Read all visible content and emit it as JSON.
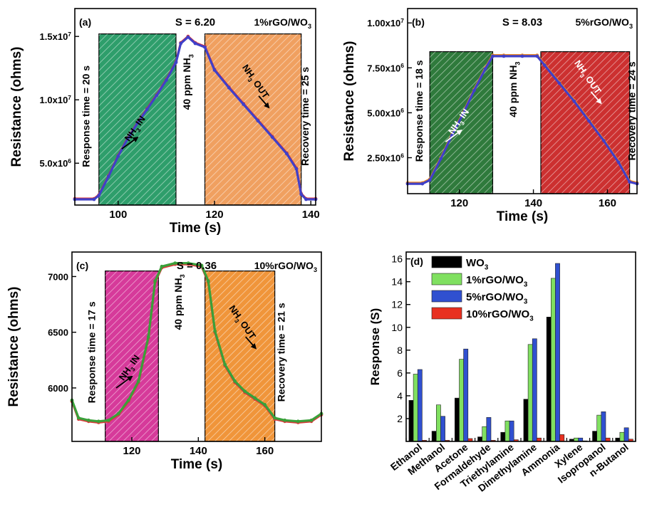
{
  "chart_data": [
    {
      "panel": "(a)",
      "type": "line",
      "sensitivity_label": "S = 6.20",
      "material_label": "1%rGO/WO",
      "material_sub": "3",
      "xlabel": "Time (s)",
      "ylabel": "Resistance (ohms)",
      "xlim": [
        91,
        141
      ],
      "ylim": [
        1700000,
        17200000
      ],
      "xticks": [
        100,
        120,
        140
      ],
      "xtick_labels": [
        "100",
        "120",
        "140"
      ],
      "yticks": [
        5000000,
        10000000,
        15000000
      ],
      "ytick_labels": [
        {
          "mant": "5.0x10",
          "exp": "6"
        },
        {
          "mant": "1.0x10",
          "exp": "7"
        },
        {
          "mant": "1.5x10",
          "exp": "7"
        }
      ],
      "regions": [
        {
          "x0": 96,
          "x1": 112,
          "top": 15200000,
          "fill": "#2e9e6b",
          "label": "NH",
          "label_sub": "3",
          "label_post": " IN"
        },
        {
          "x0": 118,
          "x1": 138,
          "top": 15200000,
          "fill": "#f0a060",
          "label": "NH",
          "label_sub": "3",
          "label_post": " OUT"
        }
      ],
      "vertical_labels": [
        {
          "text": "Response time = 20 s",
          "x": 94,
          "y": 8700000
        },
        {
          "text": "40 ppm NH",
          "sub": "3",
          "x": 115,
          "y": 11400000
        },
        {
          "text": "Recovery time = 25 s",
          "x": 139.5,
          "y": 8700000
        }
      ],
      "series": [
        {
          "color": "#e03030",
          "points": [
            [
              91,
              2200000
            ],
            [
              95,
              2200000
            ],
            [
              96,
              2500000
            ],
            [
              98,
              4000000
            ],
            [
              100,
              5600000
            ],
            [
              102,
              7000000
            ],
            [
              104,
              8200000
            ],
            [
              106,
              9300000
            ],
            [
              108,
              10400000
            ],
            [
              110,
              11600000
            ],
            [
              112,
              13000000
            ],
            [
              113,
              14500000
            ],
            [
              114.5,
              15000000
            ],
            [
              116,
              14500000
            ],
            [
              118,
              14200000
            ],
            [
              120,
              12400000
            ],
            [
              123,
              11000000
            ],
            [
              126,
              9700000
            ],
            [
              129,
              8400000
            ],
            [
              132,
              7100000
            ],
            [
              135,
              5800000
            ],
            [
              137,
              4600000
            ],
            [
              138,
              2600000
            ],
            [
              139,
              2200000
            ],
            [
              141,
              2200000
            ]
          ]
        },
        {
          "color": "#4040c8",
          "points": [
            [
              91,
              2150000
            ],
            [
              95,
              2150000
            ],
            [
              96,
              2450000
            ],
            [
              98,
              3950000
            ],
            [
              100,
              5550000
            ],
            [
              102,
              6950000
            ],
            [
              104,
              8150000
            ],
            [
              106,
              9250000
            ],
            [
              108,
              10350000
            ],
            [
              110,
              11550000
            ],
            [
              112,
              12950000
            ],
            [
              113,
              14450000
            ],
            [
              114.5,
              14950000
            ],
            [
              116,
              14450000
            ],
            [
              118,
              14150000
            ],
            [
              120,
              12350000
            ],
            [
              123,
              10950000
            ],
            [
              126,
              9650000
            ],
            [
              129,
              8350000
            ],
            [
              132,
              7050000
            ],
            [
              135,
              5750000
            ],
            [
              137,
              4550000
            ],
            [
              138,
              2550000
            ],
            [
              139,
              2150000
            ],
            [
              141,
              2150000
            ]
          ]
        }
      ]
    },
    {
      "panel": "(b)",
      "type": "line",
      "sensitivity_label": "S = 8.03",
      "material_label": "5%rGO/WO",
      "material_sub": "3",
      "xlabel": "Time (s)",
      "ylabel": "Resistance (ohms)",
      "xlim": [
        106,
        168
      ],
      "ylim": [
        500000,
        10800000
      ],
      "xticks": [
        120,
        140,
        160
      ],
      "xtick_labels": [
        "120",
        "140",
        "160"
      ],
      "yticks": [
        2500000,
        5000000,
        7500000,
        10000000
      ],
      "ytick_labels": [
        {
          "mant": "2.50x10",
          "exp": "6"
        },
        {
          "mant": "5.00x10",
          "exp": "6"
        },
        {
          "mant": "7.50x10",
          "exp": "6"
        },
        {
          "mant": "1.00x10",
          "exp": "7"
        }
      ],
      "regions": [
        {
          "x0": 112,
          "x1": 129,
          "top": 8400000,
          "fill": "#2f7a3c",
          "label": "NH",
          "label_sub": "3",
          "label_post": " IN"
        },
        {
          "x0": 142,
          "x1": 166,
          "top": 8400000,
          "fill": "#cc3030",
          "label": "NH",
          "label_sub": "3",
          "label_post": " OUT"
        }
      ],
      "vertical_labels": [
        {
          "text": "Response time = 18 s",
          "x": 110,
          "y": 5100000
        },
        {
          "text": "40 ppm NH",
          "sub": "3",
          "x": 135.5,
          "y": 6300000
        },
        {
          "text": "Recovery time = 24 s",
          "x": 167.5,
          "y": 5100000
        }
      ],
      "series": [
        {
          "color": "#f08a20",
          "points": [
            [
              106,
              1100000
            ],
            [
              110,
              1100000
            ],
            [
              112,
              1300000
            ],
            [
              115,
              2500000
            ],
            [
              118,
              3800000
            ],
            [
              121,
              5000000
            ],
            [
              124,
              6300000
            ],
            [
              127,
              7500000
            ],
            [
              129,
              8200000
            ],
            [
              132,
              8200000
            ],
            [
              137,
              8200000
            ],
            [
              141,
              8200000
            ],
            [
              143,
              7700000
            ],
            [
              147,
              6700000
            ],
            [
              151,
              5700000
            ],
            [
              155,
              4600000
            ],
            [
              159,
              3500000
            ],
            [
              163,
              2300000
            ],
            [
              166,
              1200000
            ],
            [
              168,
              1100000
            ]
          ]
        },
        {
          "color": "#4040c8",
          "points": [
            [
              106,
              1050000
            ],
            [
              110,
              1050000
            ],
            [
              112,
              1250000
            ],
            [
              115,
              2450000
            ],
            [
              118,
              3750000
            ],
            [
              121,
              4950000
            ],
            [
              124,
              6250000
            ],
            [
              127,
              7450000
            ],
            [
              129,
              8150000
            ],
            [
              132,
              8150000
            ],
            [
              137,
              8150000
            ],
            [
              141,
              8150000
            ],
            [
              143,
              7650000
            ],
            [
              147,
              6650000
            ],
            [
              151,
              5650000
            ],
            [
              155,
              4550000
            ],
            [
              159,
              3450000
            ],
            [
              163,
              2250000
            ],
            [
              166,
              1150000
            ],
            [
              168,
              1050000
            ]
          ]
        }
      ]
    },
    {
      "panel": "(c)",
      "type": "line",
      "sensitivity_label": "S = 0.36",
      "material_label": "10%rGO/WO",
      "material_sub": "3",
      "xlabel": "Time (s)",
      "ylabel": "Resistance (ohms)",
      "xlim": [
        102,
        177
      ],
      "ylim": [
        5520,
        7220
      ],
      "xticks": [
        120,
        140,
        160
      ],
      "xtick_labels": [
        "120",
        "140",
        "160"
      ],
      "yticks": [
        6000,
        6500,
        7000
      ],
      "ytick_labels": [
        {
          "mant": "6000",
          "exp": ""
        },
        {
          "mant": "6500",
          "exp": ""
        },
        {
          "mant": "7000",
          "exp": ""
        }
      ],
      "regions": [
        {
          "x0": 112,
          "x1": 128,
          "top": 7050,
          "fill": "#d63a9a",
          "label": "NH",
          "label_sub": "3",
          "label_post": " IN"
        },
        {
          "x0": 142,
          "x1": 163,
          "top": 7050,
          "fill": "#f0953a",
          "label": "NH",
          "label_sub": "3",
          "label_post": " OUT"
        }
      ],
      "vertical_labels": [
        {
          "text": "Response time = 17 s",
          "x": 109,
          "y": 6320
        },
        {
          "text": "40 ppm NH",
          "sub": "3",
          "x": 135,
          "y": 6770
        },
        {
          "text": "Recovery time = 21 s",
          "x": 166,
          "y": 6320
        }
      ],
      "series": [
        {
          "color": "#d83a3a",
          "points": [
            [
              102,
              5880
            ],
            [
              104,
              5720
            ],
            [
              107,
              5700
            ],
            [
              110,
              5690
            ],
            [
              113,
              5700
            ],
            [
              116,
              5760
            ],
            [
              119,
              5880
            ],
            [
              122,
              6050
            ],
            [
              125,
              6450
            ],
            [
              127,
              6950
            ],
            [
              129,
              7080
            ],
            [
              133,
              7110
            ],
            [
              137,
              7110
            ],
            [
              141,
              7090
            ],
            [
              143,
              6950
            ],
            [
              145,
              6500
            ],
            [
              148,
              6200
            ],
            [
              151,
              6050
            ],
            [
              154,
              5960
            ],
            [
              157,
              5900
            ],
            [
              160,
              5840
            ],
            [
              163,
              5720
            ],
            [
              166,
              5700
            ],
            [
              170,
              5690
            ],
            [
              174,
              5700
            ],
            [
              177,
              5760
            ]
          ]
        },
        {
          "color": "#3aa03a",
          "points": [
            [
              102,
              5890
            ],
            [
              104,
              5730
            ],
            [
              107,
              5710
            ],
            [
              110,
              5700
            ],
            [
              113,
              5710
            ],
            [
              116,
              5770
            ],
            [
              119,
              5890
            ],
            [
              122,
              6060
            ],
            [
              125,
              6460
            ],
            [
              127,
              6960
            ],
            [
              129,
              7090
            ],
            [
              133,
              7120
            ],
            [
              137,
              7120
            ],
            [
              141,
              7100
            ],
            [
              143,
              6960
            ],
            [
              145,
              6510
            ],
            [
              148,
              6210
            ],
            [
              151,
              6060
            ],
            [
              154,
              5970
            ],
            [
              157,
              5910
            ],
            [
              160,
              5850
            ],
            [
              163,
              5730
            ],
            [
              166,
              5710
            ],
            [
              170,
              5700
            ],
            [
              174,
              5710
            ],
            [
              177,
              5770
            ]
          ]
        }
      ]
    },
    {
      "panel": "(d)",
      "type": "bar",
      "xlabel": "",
      "ylabel": "Response (S)",
      "ylim": [
        0,
        16.6
      ],
      "yticks": [
        2,
        4,
        6,
        8,
        10,
        12,
        14,
        16
      ],
      "ytick_labels": [
        "2",
        "4",
        "6",
        "8",
        "10",
        "12",
        "14",
        "16"
      ],
      "categories": [
        "Ethanol",
        "Methanol",
        "Acetone",
        "Formaldehyde",
        "Triethylamine",
        "Dimethylamine",
        "Ammonia",
        "Xylene",
        "Isopropanol",
        "n-Butanol"
      ],
      "legend_position": "top-left",
      "series": [
        {
          "name": "WO",
          "name_sub": "3",
          "color": "#000000",
          "values": [
            3.6,
            0.9,
            3.8,
            0.4,
            0.8,
            3.7,
            10.9,
            0.2,
            0.9,
            0.3
          ]
        },
        {
          "name": "1%rGO/WO",
          "name_sub": "3",
          "color": "#80e060",
          "values": [
            5.9,
            3.2,
            7.2,
            1.3,
            1.8,
            8.5,
            14.3,
            0.3,
            2.3,
            0.8
          ]
        },
        {
          "name": "5%rGO/WO",
          "name_sub": "3",
          "color": "#3050d0",
          "values": [
            6.3,
            2.2,
            8.1,
            2.1,
            1.8,
            9.0,
            15.6,
            0.3,
            2.6,
            1.2
          ]
        },
        {
          "name": "10%rGO/WO",
          "name_sub": "3",
          "color": "#e83020",
          "values": [
            0.1,
            0.1,
            0.25,
            0.1,
            0.15,
            0.3,
            0.6,
            0.05,
            0.3,
            0.2
          ]
        }
      ]
    }
  ]
}
